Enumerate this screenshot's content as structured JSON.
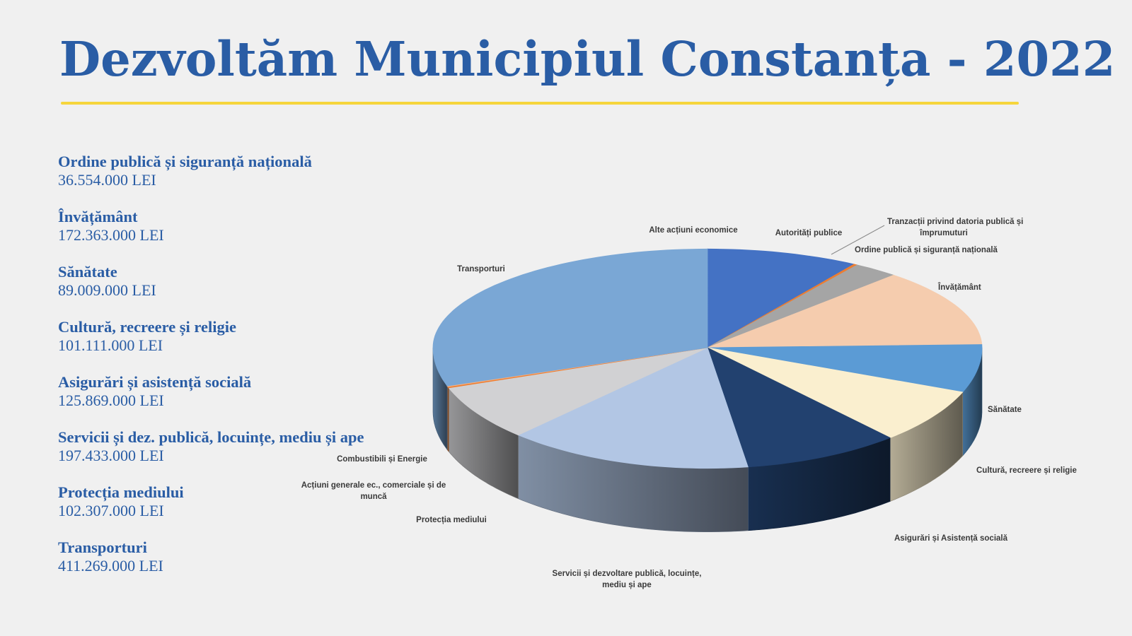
{
  "title": "Dezvoltăm Municipiul Constanța - 2022",
  "colors": {
    "title": "#2a5da5",
    "rule": "#f6d53c",
    "background": "#f0f0f0"
  },
  "budget_items": [
    {
      "label": "Ordine publică și siguranță națională",
      "value": "36.554.000 LEI"
    },
    {
      "label": "Învățământ",
      "value": "172.363.000 LEI"
    },
    {
      "label": "Sănătate",
      "value": "89.009.000 LEI"
    },
    {
      "label": "Cultură, recreere și religie",
      "value": "101.111.000 LEI"
    },
    {
      "label": "Asigurări și asistență socială",
      "value": "125.869.000 LEI"
    },
    {
      "label": "Servicii și dez. publică, locuințe, mediu și ape",
      "value": "197.433.000 LEI"
    },
    {
      "label": "Protecția mediului",
      "value": "102.307.000 LEI"
    },
    {
      "label": "Transporturi",
      "value": "411.269.000 LEI"
    }
  ],
  "chart_data": {
    "type": "pie",
    "style": "3d-exploded-perspective",
    "slices": [
      {
        "label": "Alte acțiuni economice",
        "value": 0.2,
        "color": "#3f6fc2"
      },
      {
        "label": "Autorități publice",
        "value": 122.0,
        "color": "#4472c4"
      },
      {
        "label": "Tranzacții privind datoria publică și împrumuturi",
        "value": 3.0,
        "color": "#ed7d31"
      },
      {
        "label": "Ordine publică și siguranță națională",
        "value": 36.554,
        "color": "#a5a5a5"
      },
      {
        "label": "Învățământ",
        "value": 172.363,
        "color": "#f5ccae"
      },
      {
        "label": "Sănătate",
        "value": 89.009,
        "color": "#5b9bd5"
      },
      {
        "label": "Cultură, recreere și religie",
        "value": 101.111,
        "color": "#faefcf"
      },
      {
        "label": "Asigurări și Asistență socială",
        "value": 125.869,
        "color": "#22416f"
      },
      {
        "label": "Servicii și dezvoltare publică, locuințe, mediu și ape",
        "value": 197.433,
        "color": "#b2c6e4"
      },
      {
        "label": "Protecția mediului",
        "value": 102.307,
        "color": "#d1d1d3"
      },
      {
        "label": "Acțiuni generale ec., comerciale și de muncă",
        "value": 2.0,
        "color": "#ed7d31"
      },
      {
        "label": "Combustibili și Energie",
        "value": 1.5,
        "color": "#f4b183"
      },
      {
        "label": "Transporturi",
        "value": 411.269,
        "color": "#7aa7d5"
      }
    ]
  }
}
